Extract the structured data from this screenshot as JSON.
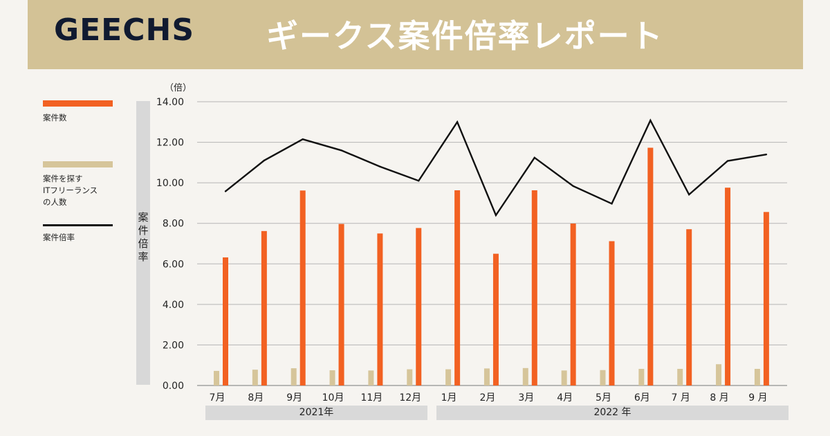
{
  "header": {
    "logo": "GEECHS",
    "title": "ギークス案件倍率レポート"
  },
  "legend": [
    {
      "label": "案件数",
      "color": "#f26122"
    },
    {
      "label": "案件を探す\nITフリーランス\nの人数",
      "color": "#d6c59a"
    },
    {
      "label": "案件倍率",
      "color": "#111111"
    }
  ],
  "yaxis": {
    "title": "案件倍率",
    "unit": "（倍）"
  },
  "years": [
    "2021年",
    "2022 年"
  ],
  "chart_data": {
    "type": "bar",
    "categories": [
      "7月",
      "8月",
      "9月",
      "10月",
      "11月",
      "12月",
      "1月",
      "2月",
      "3月",
      "4月",
      "5月",
      "6月",
      "7 月",
      "8 月",
      "9 月"
    ],
    "yticks": [
      "0.00",
      "2.00",
      "4.00",
      "6.00",
      "8.00",
      "10.00",
      "12.00",
      "14.00"
    ],
    "ylim": [
      0,
      14
    ],
    "grid": true,
    "series": [
      {
        "name": "案件を探すITフリーランスの人数",
        "kind": "bar",
        "color": "#d6c59a",
        "values": [
          0.72,
          0.78,
          0.85,
          0.75,
          0.74,
          0.8,
          0.8,
          0.84,
          0.86,
          0.74,
          0.76,
          0.82,
          0.82,
          1.05,
          0.82
        ]
      },
      {
        "name": "案件数",
        "kind": "bar",
        "color": "#f26122",
        "values": [
          6.32,
          7.62,
          9.62,
          7.97,
          7.5,
          7.77,
          9.63,
          6.5,
          9.63,
          7.99,
          7.12,
          11.73,
          7.71,
          9.76,
          8.56
        ]
      },
      {
        "name": "案件倍率",
        "kind": "line",
        "color": "#111111",
        "values": [
          9.58,
          11.1,
          12.15,
          11.6,
          10.8,
          10.1,
          13.0,
          8.4,
          11.24,
          9.84,
          8.97,
          13.08,
          9.42,
          11.08,
          11.4
        ]
      }
    ]
  }
}
